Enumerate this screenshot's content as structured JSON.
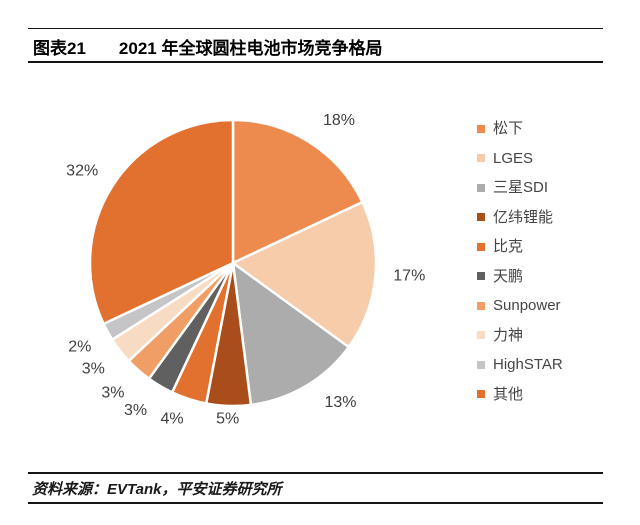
{
  "header": {
    "figure_label": "图表21",
    "title": "2021 年全球圆柱电池市场竞争格局"
  },
  "chart_data": {
    "type": "pie",
    "title": "2021 年全球圆柱电池市场竞争格局",
    "start_angle_deg": 0,
    "direction": "clockwise",
    "legend_position": "right",
    "data_labels": "percent-outside",
    "label_color": "#404040",
    "slice_gap_color": "#FFFFFF",
    "slices": [
      {
        "label": "松下",
        "value": 18,
        "pct_label": "18%",
        "color": "#ED8B4F"
      },
      {
        "label": "LGES",
        "value": 17,
        "pct_label": "17%",
        "color": "#F6CCAB"
      },
      {
        "label": "三星SDI",
        "value": 13,
        "pct_label": "13%",
        "color": "#ACACAC"
      },
      {
        "label": "亿纬锂能",
        "value": 5,
        "pct_label": "5%",
        "color": "#A94D1A"
      },
      {
        "label": "比克",
        "value": 4,
        "pct_label": "4%",
        "color": "#E2702E"
      },
      {
        "label": "天鹏",
        "value": 3,
        "pct_label": "3%",
        "color": "#606060"
      },
      {
        "label": "Sunpower",
        "value": 3,
        "pct_label": "3%",
        "color": "#F09E66"
      },
      {
        "label": "力神",
        "value": 3,
        "pct_label": "3%",
        "color": "#F7DCC3"
      },
      {
        "label": "HighSTAR",
        "value": 2,
        "pct_label": "2%",
        "color": "#C5C5C7"
      },
      {
        "label": "其他",
        "value": 32,
        "pct_label": "32%",
        "color": "#E2702E"
      }
    ]
  },
  "footer": {
    "source": "资料来源：EVTank，平安证券研究所"
  }
}
